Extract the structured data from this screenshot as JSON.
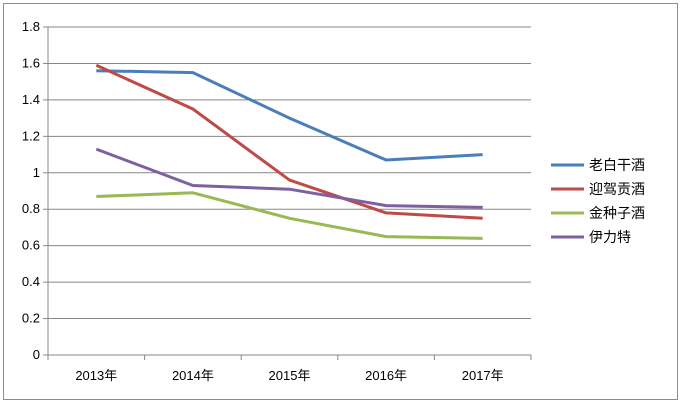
{
  "chart_data": {
    "type": "line",
    "title": "",
    "xlabel": "",
    "ylabel": "",
    "categories": [
      "2013年",
      "2014年",
      "2015年",
      "2016年",
      "2017年"
    ],
    "ylim": [
      0,
      1.8
    ],
    "yticks": [
      "0",
      "0.2",
      "0.4",
      "0.6",
      "0.8",
      "1",
      "1.2",
      "1.4",
      "1.6",
      "1.8"
    ],
    "grid": true,
    "legend_position": "right",
    "series": [
      {
        "name": "老白干酒",
        "color": "#4a7ebb",
        "values": [
          1.56,
          1.55,
          1.3,
          1.07,
          1.1
        ]
      },
      {
        "name": "迎驾贡酒",
        "color": "#be4b48",
        "values": [
          1.59,
          1.35,
          0.96,
          0.78,
          0.75
        ]
      },
      {
        "name": "金种子酒",
        "color": "#98b954",
        "values": [
          0.87,
          0.89,
          0.75,
          0.65,
          0.64
        ]
      },
      {
        "name": "伊力特",
        "color": "#7d60a0",
        "values": [
          1.13,
          0.93,
          0.91,
          0.82,
          0.81
        ]
      }
    ]
  }
}
